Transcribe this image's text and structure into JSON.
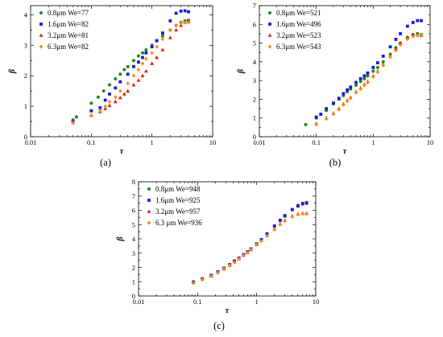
{
  "chart_data": [
    {
      "type": "scatter",
      "panel_label": "(a)",
      "xlabel": "τ",
      "ylabel": "β",
      "xscale": "log",
      "xlim": [
        0.01,
        10
      ],
      "ylim": [
        0,
        4.3
      ],
      "x_ticks": [
        "0.01",
        "0.1",
        "1",
        "10"
      ],
      "y_ticks": [
        "0",
        "1",
        "2",
        "3",
        "4"
      ],
      "legend_position": "top-left",
      "series": [
        {
          "name": "0.8μm We=77",
          "color": "#1a8a1a",
          "marker": "circle",
          "x": [
            0.05,
            0.057,
            0.1,
            0.13,
            0.16,
            0.2,
            0.25,
            0.3,
            0.35,
            0.4,
            0.5,
            0.6,
            0.7,
            0.8,
            1.0,
            1.2,
            1.5,
            2.0,
            2.5,
            3.0,
            3.5,
            4.0
          ],
          "y": [
            0.55,
            0.65,
            1.1,
            1.3,
            1.5,
            1.7,
            1.9,
            2.05,
            2.2,
            2.3,
            2.5,
            2.65,
            2.75,
            2.85,
            3.0,
            3.15,
            3.3,
            3.5,
            3.65,
            3.75,
            3.8,
            3.82
          ]
        },
        {
          "name": "1.6μm We=82",
          "color": "#1a1ad6",
          "marker": "square",
          "x": [
            0.05,
            0.1,
            0.14,
            0.17,
            0.2,
            0.25,
            0.3,
            0.4,
            0.5,
            0.6,
            0.7,
            0.8,
            1.0,
            1.2,
            1.5,
            2.0,
            2.5,
            3.0,
            3.5,
            4.0
          ],
          "y": [
            0.5,
            0.85,
            0.95,
            1.2,
            1.4,
            1.6,
            1.8,
            2.05,
            2.3,
            2.45,
            2.6,
            2.75,
            2.95,
            3.15,
            3.4,
            3.8,
            4.05,
            4.12,
            4.13,
            4.1
          ]
        },
        {
          "name": "3.2μm We=81",
          "color": "#e01818",
          "marker": "triangle",
          "x": [
            0.05,
            0.1,
            0.14,
            0.17,
            0.2,
            0.25,
            0.3,
            0.35,
            0.4,
            0.5,
            0.6,
            0.7,
            0.8,
            1.0,
            1.2,
            1.5,
            2.0,
            2.5,
            3.0,
            3.5,
            4.0
          ],
          "y": [
            0.5,
            0.7,
            0.82,
            0.92,
            1.02,
            1.15,
            1.28,
            1.4,
            1.5,
            1.7,
            1.85,
            2.0,
            2.15,
            2.4,
            2.6,
            2.85,
            3.25,
            3.5,
            3.65,
            3.75,
            3.8
          ]
        },
        {
          "name": "6.3μm We=82",
          "color": "#f28c18",
          "marker": "diamond",
          "x": [
            0.05,
            0.1,
            0.14,
            0.17,
            0.2,
            0.25,
            0.3,
            0.4,
            0.5,
            0.6,
            0.7,
            0.8,
            1.0,
            1.2,
            1.5,
            2.0,
            2.5,
            3.0,
            3.5,
            4.0
          ],
          "y": [
            0.45,
            0.7,
            0.85,
            1.0,
            1.15,
            1.3,
            1.5,
            1.75,
            2.0,
            2.2,
            2.4,
            2.55,
            2.75,
            2.95,
            3.2,
            3.5,
            3.65,
            3.72,
            3.75,
            3.75
          ]
        }
      ]
    },
    {
      "type": "scatter",
      "panel_label": "(b)",
      "xlabel": "τ",
      "ylabel": "β",
      "xscale": "log",
      "xlim": [
        0.01,
        10
      ],
      "ylim": [
        0,
        7
      ],
      "x_ticks": [
        "0.01",
        "0.1",
        "1",
        "10"
      ],
      "y_ticks": [
        "0",
        "1",
        "2",
        "3",
        "4",
        "5",
        "6",
        "7"
      ],
      "legend_position": "top-left",
      "series": [
        {
          "name": "0.8μm We=521",
          "color": "#1a8a1a",
          "marker": "circle",
          "x": [
            0.065,
            0.1,
            0.12,
            0.15,
            0.2,
            0.25,
            0.3,
            0.35,
            0.4,
            0.5,
            0.6,
            0.7,
            0.8,
            1.0,
            1.2,
            1.5,
            2.0,
            2.5,
            3.0,
            4.0,
            5.0,
            6.0,
            7.0
          ],
          "y": [
            0.65,
            1.0,
            1.2,
            1.4,
            1.75,
            2.0,
            2.2,
            2.4,
            2.55,
            2.75,
            2.95,
            3.1,
            3.25,
            3.5,
            3.7,
            4.0,
            4.4,
            4.75,
            5.0,
            5.3,
            5.45,
            5.5,
            5.45
          ]
        },
        {
          "name": "1.6μm We=496",
          "color": "#1a1ad6",
          "marker": "square",
          "x": [
            0.1,
            0.12,
            0.15,
            0.2,
            0.25,
            0.3,
            0.35,
            0.4,
            0.5,
            0.6,
            0.7,
            0.8,
            1.0,
            1.2,
            1.5,
            2.0,
            2.5,
            3.0,
            4.0,
            5.0,
            6.0,
            7.0
          ],
          "y": [
            1.05,
            1.2,
            1.5,
            1.8,
            2.05,
            2.3,
            2.5,
            2.65,
            2.9,
            3.1,
            3.25,
            3.4,
            3.7,
            3.95,
            4.3,
            4.8,
            5.2,
            5.5,
            5.9,
            6.1,
            6.2,
            6.2
          ]
        },
        {
          "name": "3.2μm We=523",
          "color": "#e01818",
          "marker": "triangle",
          "x": [
            0.1,
            0.15,
            0.2,
            0.25,
            0.3,
            0.35,
            0.4,
            0.5,
            0.6,
            0.7,
            0.8,
            1.0,
            1.2,
            1.5,
            2.0,
            2.5,
            3.0,
            4.0,
            5.0,
            6.0,
            7.0
          ],
          "y": [
            0.7,
            1.0,
            1.25,
            1.5,
            1.75,
            1.95,
            2.1,
            2.4,
            2.6,
            2.8,
            2.95,
            3.25,
            3.5,
            3.85,
            4.3,
            4.7,
            5.0,
            5.3,
            5.45,
            5.45,
            5.4
          ]
        },
        {
          "name": "6.3μm We=543",
          "color": "#f28c18",
          "marker": "diamond",
          "x": [
            0.1,
            0.15,
            0.2,
            0.25,
            0.3,
            0.35,
            0.4,
            0.5,
            0.6,
            0.7,
            0.8,
            1.0,
            1.2,
            1.5,
            2.0,
            2.5,
            3.0,
            4.0,
            5.0,
            6.0,
            7.0
          ],
          "y": [
            0.65,
            0.95,
            1.2,
            1.45,
            1.7,
            1.9,
            2.05,
            2.35,
            2.55,
            2.75,
            2.9,
            3.2,
            3.45,
            3.8,
            4.25,
            4.6,
            4.9,
            5.2,
            5.35,
            5.4,
            5.4
          ]
        }
      ]
    },
    {
      "type": "scatter",
      "panel_label": "(c)",
      "xlabel": "τ",
      "ylabel": "β",
      "xscale": "log",
      "xlim": [
        0.01,
        10
      ],
      "ylim": [
        0,
        8
      ],
      "x_ticks": [
        "0.01",
        "0.1",
        "1",
        "10"
      ],
      "y_ticks": [
        "0",
        "1",
        "2",
        "3",
        "4",
        "5",
        "6",
        "7",
        "8"
      ],
      "legend_position": "top-left",
      "series": [
        {
          "name": "0.8μm We=948",
          "color": "#1a8a1a",
          "marker": "circle",
          "x": [
            0.085,
            0.12,
            0.17,
            0.22,
            0.28,
            0.35,
            0.42,
            0.5,
            0.6,
            0.7,
            0.8,
            1.0,
            1.2,
            1.5,
            2.0,
            2.5,
            3.0,
            4.0,
            5.0,
            6.0,
            7.0
          ],
          "y": [
            1.0,
            1.2,
            1.45,
            1.7,
            1.95,
            2.2,
            2.45,
            2.65,
            2.9,
            3.1,
            3.3,
            3.65,
            3.95,
            4.35,
            4.9,
            5.3,
            5.65,
            6.05,
            6.35,
            6.5,
            6.55
          ]
        },
        {
          "name": "1.6μm We=925",
          "color": "#1a1ad6",
          "marker": "square",
          "x": [
            0.085,
            0.12,
            0.17,
            0.22,
            0.28,
            0.35,
            0.42,
            0.5,
            0.6,
            0.7,
            0.8,
            1.0,
            1.2,
            1.5,
            2.0,
            2.5,
            3.0,
            4.0,
            5.0,
            6.0,
            7.0
          ],
          "y": [
            0.95,
            1.2,
            1.45,
            1.7,
            1.95,
            2.2,
            2.45,
            2.65,
            2.9,
            3.1,
            3.3,
            3.65,
            3.95,
            4.35,
            4.9,
            5.3,
            5.6,
            6.05,
            6.3,
            6.45,
            6.5
          ]
        },
        {
          "name": "3.2μm We=957",
          "color": "#e01818",
          "marker": "triangle",
          "x": [
            0.085,
            0.12,
            0.17,
            0.22,
            0.28,
            0.35,
            0.42,
            0.5,
            0.6,
            0.7,
            0.8,
            1.0,
            1.2,
            1.5,
            2.0,
            2.5,
            3.0,
            4.0,
            5.0,
            6.0,
            7.0
          ],
          "y": [
            0.95,
            1.2,
            1.4,
            1.65,
            1.9,
            2.15,
            2.4,
            2.6,
            2.85,
            3.05,
            3.25,
            3.6,
            3.9,
            4.25,
            4.7,
            5.05,
            5.3,
            5.6,
            5.75,
            5.8,
            5.8
          ]
        },
        {
          "name": "6.3 μm We=936",
          "color": "#f28c18",
          "marker": "diamond",
          "x": [
            0.085,
            0.12,
            0.17,
            0.22,
            0.28,
            0.35,
            0.42,
            0.5,
            0.6,
            0.7,
            0.8,
            1.0,
            1.2,
            1.5,
            2.0,
            2.5,
            3.0,
            4.0,
            5.0,
            6.0,
            7.0
          ],
          "y": [
            0.9,
            1.15,
            1.4,
            1.65,
            1.9,
            2.15,
            2.35,
            2.6,
            2.85,
            3.05,
            3.25,
            3.6,
            3.85,
            4.2,
            4.65,
            5.0,
            5.25,
            5.55,
            5.7,
            5.75,
            5.75
          ]
        }
      ]
    }
  ]
}
